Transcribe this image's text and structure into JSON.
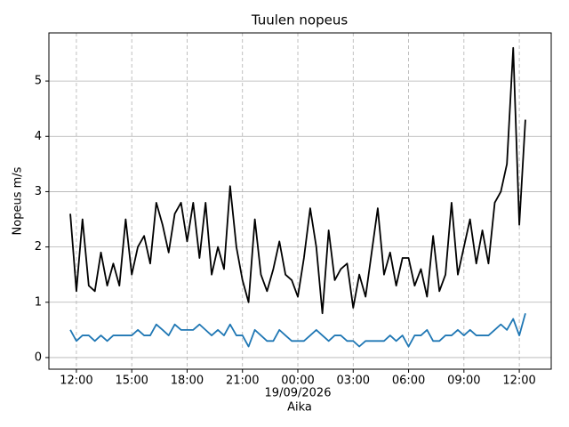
{
  "chart_data": {
    "type": "line",
    "title": "Tuulen nopeus",
    "x_label": "Aika",
    "y_label": "Nopeus m/s",
    "date_label": "19/09/2026",
    "x": [
      11.67,
      12,
      12.33,
      12.67,
      13,
      13.33,
      13.67,
      14,
      14.33,
      14.67,
      15,
      15.33,
      15.67,
      16,
      16.33,
      16.67,
      17,
      17.33,
      17.67,
      18,
      18.33,
      18.67,
      19,
      19.33,
      19.67,
      20,
      20.33,
      20.67,
      21,
      21.33,
      21.67,
      22,
      22.33,
      22.67,
      23,
      23.33,
      23.67,
      24,
      24.33,
      24.67,
      25,
      25.33,
      25.67,
      26,
      26.33,
      26.67,
      27,
      27.33,
      27.67,
      28,
      28.33,
      28.67,
      29,
      29.33,
      29.67,
      30,
      30.33,
      30.67,
      31,
      31.33,
      31.67,
      32,
      32.33,
      32.67,
      33,
      33.33,
      33.67,
      34,
      34.33,
      34.67,
      35,
      35.33,
      35.67,
      36,
      36.33
    ],
    "series": [
      {
        "color": "#000000",
        "values": [
          2.6,
          1.2,
          2.5,
          1.3,
          1.2,
          1.9,
          1.3,
          1.7,
          1.3,
          2.5,
          1.5,
          2.0,
          2.2,
          1.7,
          2.8,
          2.4,
          1.9,
          2.6,
          2.8,
          2.1,
          2.8,
          1.8,
          2.8,
          1.5,
          2.0,
          1.6,
          3.1,
          2.0,
          1.4,
          1.0,
          2.5,
          1.5,
          1.2,
          1.6,
          2.1,
          1.5,
          1.4,
          1.1,
          1.8,
          2.7,
          2.0,
          0.8,
          2.3,
          1.4,
          1.6,
          1.7,
          0.9,
          1.5,
          1.1,
          1.9,
          2.7,
          1.5,
          1.9,
          1.3,
          1.8,
          1.8,
          1.3,
          1.6,
          1.1,
          2.2,
          1.2,
          1.5,
          2.8,
          1.5,
          2.0,
          2.5,
          1.7,
          2.3,
          1.7,
          2.8,
          3.0,
          3.5,
          5.6,
          2.4,
          4.3
        ]
      },
      {
        "color": "#1f77b4",
        "values": [
          0.5,
          0.3,
          0.4,
          0.4,
          0.3,
          0.4,
          0.3,
          0.4,
          0.4,
          0.4,
          0.4,
          0.5,
          0.4,
          0.4,
          0.6,
          0.5,
          0.4,
          0.6,
          0.5,
          0.5,
          0.5,
          0.6,
          0.5,
          0.4,
          0.5,
          0.4,
          0.6,
          0.4,
          0.4,
          0.2,
          0.5,
          0.4,
          0.3,
          0.3,
          0.5,
          0.4,
          0.3,
          0.3,
          0.3,
          0.4,
          0.5,
          0.4,
          0.3,
          0.4,
          0.4,
          0.3,
          0.3,
          0.2,
          0.3,
          0.3,
          0.3,
          0.3,
          0.4,
          0.3,
          0.4,
          0.2,
          0.4,
          0.4,
          0.5,
          0.3,
          0.3,
          0.4,
          0.4,
          0.5,
          0.4,
          0.5,
          0.4,
          0.4,
          0.4,
          0.5,
          0.6,
          0.5,
          0.7,
          0.4,
          0.8
        ]
      }
    ],
    "xlim": [
      10.51,
      37.73
    ],
    "ylim": [
      -0.21,
      5.87
    ],
    "xticks": [
      {
        "value": 12,
        "label": "12:00"
      },
      {
        "value": 15,
        "label": "15:00"
      },
      {
        "value": 18,
        "label": "18:00"
      },
      {
        "value": 21,
        "label": "21:00"
      },
      {
        "value": 24,
        "label": "00:00"
      },
      {
        "value": 27,
        "label": "03:00"
      },
      {
        "value": 30,
        "label": "06:00"
      },
      {
        "value": 33,
        "label": "09:00"
      },
      {
        "value": 36,
        "label": "12:00"
      }
    ],
    "date_tick": 24,
    "yticks": [
      0,
      1,
      2,
      3,
      4,
      5
    ],
    "grid": true
  }
}
